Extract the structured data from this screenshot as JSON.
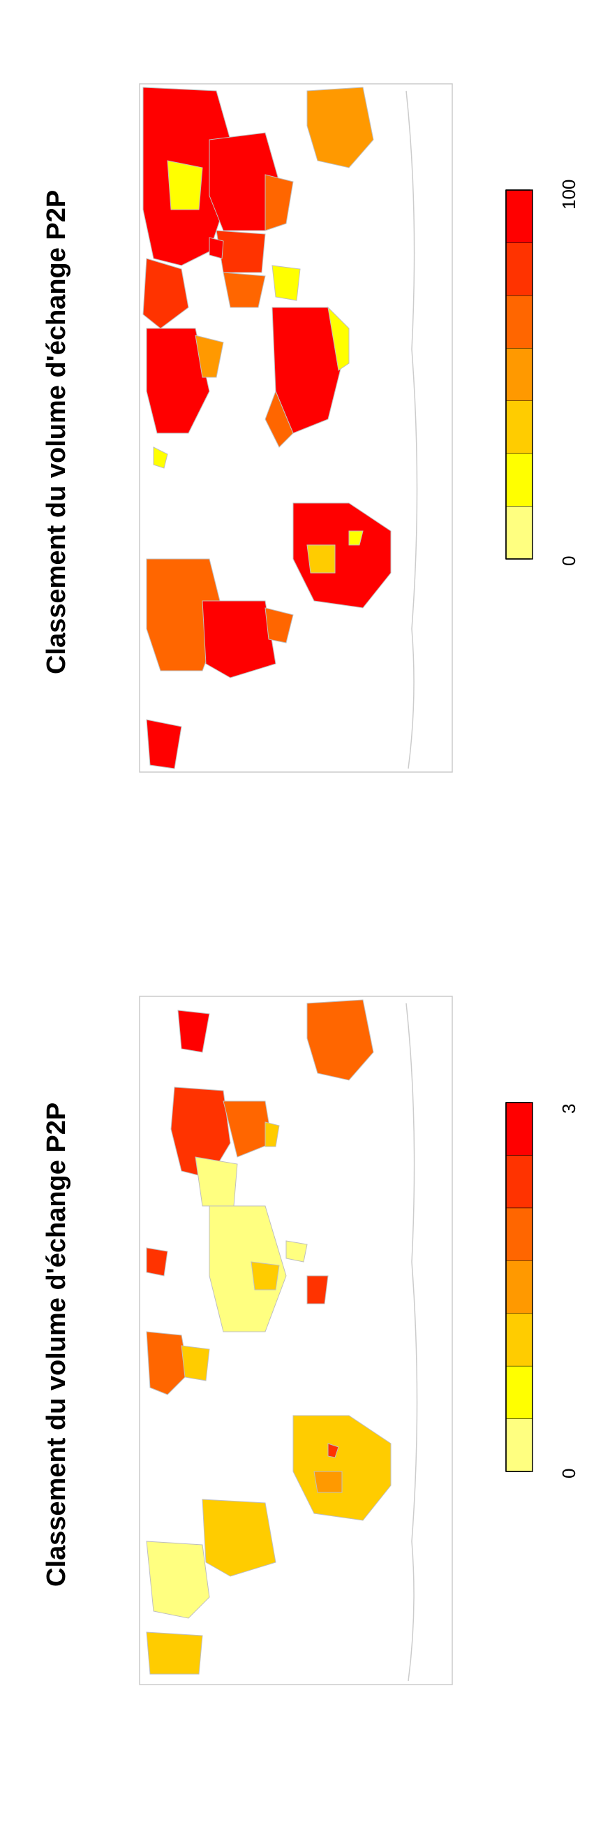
{
  "maps": [
    {
      "title": "Classement du volume d'échange P2P",
      "legend": {
        "min_label": "0",
        "max_label": "100",
        "min": 0,
        "max": 100
      }
    },
    {
      "title": "Classement du volume d'échange P2P",
      "legend": {
        "min_label": "0",
        "max_label": "3",
        "min": 0,
        "max": 3
      }
    }
  ],
  "palette": [
    "#FFFF80",
    "#FFFF00",
    "#FFCC00",
    "#FF9900",
    "#FF6600",
    "#FF3300",
    "#FF0000"
  ],
  "colors": {
    "border": "#bfbfbf",
    "no_data": "#ffffff",
    "frame": "#cccccc"
  }
}
